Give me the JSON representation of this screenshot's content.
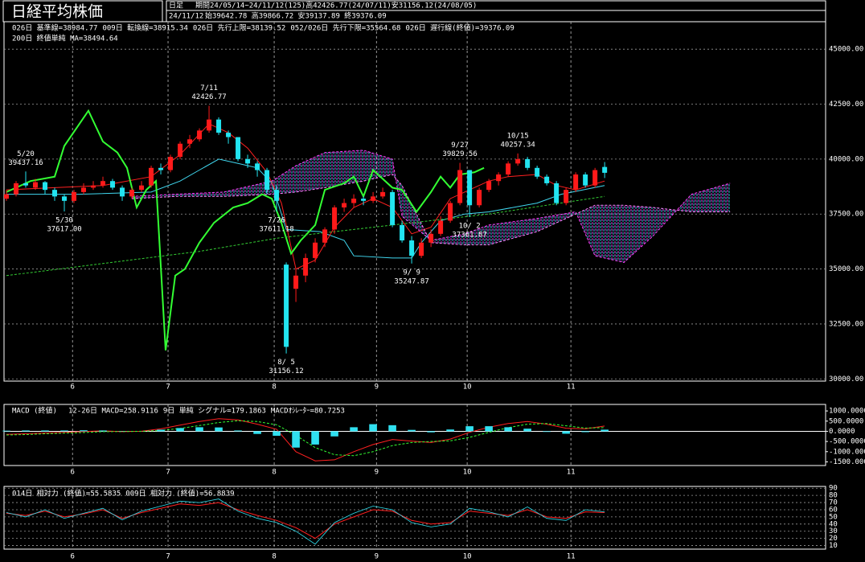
{
  "header": {
    "title": "日経平均株価",
    "interval": "日足",
    "period": "期間24/05/14~24/11/12(125)高42426.77(24/07/11)安31156.12(24/08/05)",
    "date": "24/11/12",
    "ohlc": "始39642.78 高39866.72 安39137.89 終39376.09"
  },
  "chart_data": [
    {
      "type": "candlestick",
      "x": [
        0,
        2,
        4,
        6,
        8,
        10,
        12,
        14,
        16,
        18,
        20,
        22,
        24,
        26,
        28,
        30,
        32,
        34,
        36,
        38,
        40,
        42,
        44,
        46,
        48,
        50,
        52,
        54,
        56,
        58,
        60,
        62,
        64,
        66,
        68,
        70,
        72,
        74,
        76,
        78,
        80,
        82,
        84,
        86,
        88,
        90,
        92,
        94,
        96,
        98,
        100,
        102,
        104,
        106,
        108,
        110,
        112,
        114,
        116,
        118,
        120,
        122,
        124
      ],
      "open": [
        38200,
        38400,
        38900,
        38700,
        38950,
        38600,
        38300,
        38100,
        38500,
        38700,
        38800,
        39000,
        38700,
        38300,
        38600,
        38800,
        39600,
        39500,
        40100,
        40700,
        40900,
        41300,
        41800,
        41200,
        41000,
        40000,
        39800,
        39500,
        38600,
        35200,
        34100,
        34700,
        35500,
        36200,
        36800,
        37800,
        38000,
        38200,
        38100,
        38300,
        38500,
        37000,
        36300,
        35600,
        36200,
        36600,
        37200,
        38000,
        39500,
        37900,
        38600,
        39000,
        39300,
        39800,
        40000,
        39600,
        39200,
        38900,
        38000,
        38600,
        39300,
        38800,
        39642.78
      ],
      "high": [
        38600,
        39000,
        39437.16,
        39100,
        39000,
        38700,
        38400,
        38600,
        38900,
        39000,
        39200,
        39100,
        38800,
        38700,
        39000,
        39700,
        39800,
        40200,
        40800,
        41100,
        41400,
        42426.77,
        41900,
        41300,
        41000,
        40200,
        39900,
        39600,
        38800,
        35300,
        35000,
        35700,
        36400,
        36900,
        37900,
        38200,
        38400,
        38300,
        38500,
        38700,
        38600,
        37200,
        36500,
        36400,
        36800,
        37400,
        38100,
        39829.56,
        39500,
        38700,
        39100,
        39400,
        39900,
        40257.34,
        40100,
        39700,
        39300,
        39000,
        38700,
        39400,
        39400,
        39600,
        39866.72
      ],
      "low": [
        38100,
        38300,
        38700,
        38600,
        38400,
        38100,
        37617,
        38000,
        38400,
        38600,
        38700,
        38600,
        38100,
        38200,
        38500,
        38700,
        39300,
        39400,
        40000,
        40500,
        40800,
        41200,
        41100,
        40700,
        39900,
        39600,
        39200,
        38400,
        37611.18,
        31156.12,
        33500,
        34400,
        35300,
        36000,
        36600,
        37600,
        37800,
        37900,
        38000,
        38200,
        36900,
        36200,
        35247.87,
        35500,
        36000,
        36500,
        37100,
        37900,
        37361.87,
        37800,
        38500,
        38800,
        39200,
        39700,
        39500,
        39100,
        38800,
        37900,
        37900,
        38500,
        38700,
        38700,
        39137.89
      ],
      "close": [
        38400,
        38900,
        38800,
        38950,
        38600,
        38300,
        38100,
        38500,
        38700,
        38800,
        39000,
        38700,
        38300,
        38600,
        38800,
        39600,
        39500,
        40100,
        40700,
        40900,
        41300,
        41800,
        41200,
        41000,
        40000,
        39800,
        39500,
        38600,
        38100,
        31458,
        34700,
        35500,
        36200,
        36800,
        37800,
        38000,
        38200,
        38100,
        38300,
        38500,
        37000,
        36300,
        35600,
        36200,
        36600,
        37200,
        38000,
        39500,
        37900,
        38600,
        39000,
        39300,
        39800,
        40000,
        39600,
        39200,
        38900,
        38000,
        38600,
        39300,
        38800,
        39500,
        39376.09
      ],
      "up_color": "#ff1a1a",
      "down_color": "#22e4f0",
      "annotations": [
        {
          "date": "5/20",
          "price": "39437.16"
        },
        {
          "date": "5/30",
          "price": "37617.00"
        },
        {
          "date": "7/11",
          "price": "42426.77"
        },
        {
          "date": "7/26",
          "price": "37611.18"
        },
        {
          "date": "8/ 5",
          "price": "31156.12"
        },
        {
          "date": "9/ 9",
          "price": "35247.87"
        },
        {
          "date": "9/27",
          "price": "39829.56"
        },
        {
          "date": "10/ 2",
          "price": "37361.87"
        },
        {
          "date": "10/15",
          "price": "40257.34"
        }
      ],
      "series": [
        {
          "name": "026日 基準線=38984.77",
          "color": "#40d8f0",
          "style": "line",
          "x": [
            0,
            15,
            30,
            36,
            40,
            44,
            48,
            52,
            55,
            58,
            65,
            70,
            72,
            80,
            84,
            86,
            90,
            95,
            100,
            110,
            115,
            124
          ],
          "values": [
            38400,
            38400,
            38500,
            39000,
            39500,
            40000,
            39800,
            39600,
            38900,
            36800,
            36700,
            36300,
            35600,
            35500,
            35500,
            36200,
            37200,
            37500,
            37600,
            38000,
            38400,
            38800
          ]
        },
        {
          "name": "009日 転換線=38915.34",
          "color": "#ff2020",
          "style": "line",
          "x": [
            0,
            10,
            20,
            30,
            36,
            42,
            46,
            50,
            54,
            57,
            60,
            64,
            68,
            72,
            76,
            80,
            84,
            88,
            92,
            96,
            100,
            104,
            110,
            114,
            118,
            124
          ],
          "values": [
            38600,
            38700,
            38800,
            39200,
            40200,
            41600,
            41200,
            40500,
            39400,
            38000,
            35000,
            35400,
            36900,
            37800,
            38200,
            37800,
            36600,
            36900,
            38200,
            38600,
            39000,
            39200,
            39300,
            38800,
            38600,
            39000
          ]
        },
        {
          "name": "026日 先行上限=38139.52",
          "color": "#ff40ff",
          "style": "dashed",
          "x": [
            26,
            35,
            45,
            55,
            60,
            66,
            74,
            80,
            82,
            88,
            95,
            100,
            110,
            118,
            122,
            128,
            134,
            142,
            150
          ],
          "values": [
            38300,
            38400,
            38500,
            39000,
            39700,
            40300,
            40400,
            40000,
            37400,
            36300,
            36600,
            37000,
            37300,
            37600,
            35600,
            35300,
            36500,
            38400,
            38900
          ]
        },
        {
          "name": "052/026日 先行下限=35564.68",
          "color": "#ff80ff",
          "style": "dashed",
          "x": [
            26,
            35,
            45,
            55,
            60,
            66,
            74,
            80,
            82,
            88,
            95,
            100,
            110,
            118,
            122,
            128,
            134,
            142,
            150
          ],
          "values": [
            38200,
            38300,
            38300,
            38400,
            38500,
            38700,
            39000,
            39300,
            38800,
            36200,
            36100,
            36100,
            36700,
            37500,
            37900,
            37900,
            37800,
            37600,
            37600
          ]
        },
        {
          "name": "026日 遅行線(終値)=39376.09",
          "color": "#33ff33",
          "style": "bold",
          "x": [
            0,
            5,
            10,
            12,
            17,
            20,
            23,
            25,
            27,
            29,
            31,
            33,
            35,
            37,
            40,
            43,
            47,
            50,
            53,
            55,
            57,
            59,
            61,
            64,
            66,
            70,
            72,
            74,
            76,
            80,
            82,
            85,
            88,
            90,
            92,
            94,
            97,
            99
          ],
          "values": [
            38500,
            39000,
            39200,
            40600,
            42200,
            40800,
            40300,
            39600,
            37800,
            38600,
            39000,
            31300,
            34700,
            35000,
            36200,
            37100,
            37800,
            38000,
            38400,
            38200,
            37100,
            35700,
            36300,
            37000,
            38600,
            38900,
            39200,
            38300,
            39500,
            38700,
            38600,
            37600,
            38500,
            39200,
            38700,
            39300,
            39400,
            39600
          ]
        },
        {
          "name": "200日 終値単純 MA=38494.64",
          "color": "#33cc33",
          "style": "dashed",
          "x": [
            0,
            40,
            56,
            80,
            100,
            124
          ],
          "values": [
            34700,
            35800,
            36400,
            37000,
            37500,
            38300
          ]
        }
      ],
      "cloud_fill": true,
      "xlim": [
        -0.5,
        169.8
      ],
      "xticks": [
        {
          "value": 13.7,
          "label": "6"
        },
        {
          "value": 33.5,
          "label": "7"
        },
        {
          "value": 55.5,
          "label": "8"
        },
        {
          "value": 76.7,
          "label": "9"
        },
        {
          "value": 95.5,
          "label": "10"
        },
        {
          "value": 117,
          "label": "11"
        }
      ],
      "ylim": [
        29900,
        46250
      ],
      "yticks": [
        {
          "value": 30000,
          "label": "30000.00"
        },
        {
          "value": 32500,
          "label": "32500.00"
        },
        {
          "value": 35000,
          "label": "35000.00"
        },
        {
          "value": 37500,
          "label": "37500.00"
        },
        {
          "value": 40000,
          "label": "40000.00"
        },
        {
          "value": 42500,
          "label": "42500.00"
        },
        {
          "value": 45000,
          "label": "45000.00"
        }
      ],
      "grid": true
    },
    {
      "type": "macd",
      "title": "MACD (終値)",
      "x": [
        0,
        4,
        8,
        12,
        16,
        20,
        24,
        28,
        32,
        36,
        40,
        44,
        48,
        52,
        56,
        60,
        64,
        68,
        72,
        76,
        80,
        84,
        88,
        92,
        96,
        100,
        104,
        108,
        112,
        116,
        120,
        124
      ],
      "series": [
        {
          "name": "12-26日 MACD=258.9116",
          "color": "#ff2020",
          "style": "line",
          "values": [
            -150,
            -120,
            -80,
            -50,
            -10,
            20,
            -20,
            0,
            120,
            300,
            480,
            620,
            560,
            350,
            100,
            -1000,
            -1450,
            -1400,
            -1000,
            -650,
            -400,
            -480,
            -550,
            -380,
            -50,
            200,
            380,
            480,
            350,
            150,
            120,
            259
          ]
        },
        {
          "name": "9日 単純 シグナル=179.1863",
          "color": "#33ff33",
          "style": "dashed",
          "values": [
            -180,
            -160,
            -120,
            -90,
            -60,
            -20,
            -10,
            0,
            40,
            140,
            280,
            430,
            520,
            480,
            320,
            -200,
            -800,
            -1150,
            -1200,
            -1000,
            -700,
            -550,
            -500,
            -470,
            -300,
            -50,
            180,
            350,
            380,
            270,
            160,
            179
          ]
        },
        {
          "name": "MACDｵｼﾚｰﾀｰ=80.7253",
          "color": "#30e0f0",
          "style": "bar",
          "values": [
            30,
            40,
            40,
            40,
            50,
            40,
            -10,
            0,
            80,
            160,
            200,
            190,
            40,
            -130,
            -220,
            -800,
            -650,
            -250,
            200,
            350,
            300,
            70,
            -50,
            90,
            250,
            250,
            200,
            130,
            -30,
            -120,
            -40,
            81
          ]
        }
      ],
      "xlim": [
        -0.5,
        169.8
      ],
      "xticks": [
        {
          "value": 13.7,
          "label": "6"
        },
        {
          "value": 33.5,
          "label": "7"
        },
        {
          "value": 55.5,
          "label": "8"
        },
        {
          "value": 76.7,
          "label": "9"
        },
        {
          "value": 95.5,
          "label": "10"
        },
        {
          "value": 117,
          "label": "11"
        }
      ],
      "ylim": [
        -1680,
        1320
      ],
      "yticks": [
        {
          "value": -1500,
          "label": "-1500.0000"
        },
        {
          "value": -1000,
          "label": "-1000.0000"
        },
        {
          "value": -500,
          "label": "-500.0000"
        },
        {
          "value": 0,
          "label": "0.0000"
        },
        {
          "value": 500,
          "label": "500.0000"
        },
        {
          "value": 1000,
          "label": "1000.0000"
        }
      ],
      "zero_line": true,
      "grid": false
    },
    {
      "type": "line",
      "x": [
        0,
        4,
        8,
        12,
        16,
        20,
        24,
        28,
        32,
        36,
        40,
        44,
        48,
        52,
        56,
        60,
        64,
        68,
        72,
        76,
        80,
        84,
        88,
        92,
        96,
        100,
        104,
        108,
        112,
        116,
        120,
        124
      ],
      "series": [
        {
          "name": "014日 相対力 (終値)=55.5835",
          "color": "#ff2020",
          "style": "line",
          "values": [
            55,
            52,
            58,
            50,
            54,
            60,
            48,
            56,
            62,
            68,
            66,
            70,
            60,
            52,
            45,
            35,
            20,
            40,
            50,
            60,
            58,
            45,
            40,
            42,
            58,
            55,
            52,
            60,
            50,
            48,
            57,
            56
          ]
        },
        {
          "name": "009日 相対力 (終値)=56.8839",
          "color": "#30e0f0",
          "style": "thin",
          "values": [
            56,
            50,
            60,
            48,
            55,
            62,
            46,
            58,
            65,
            72,
            70,
            75,
            58,
            48,
            42,
            30,
            12,
            42,
            55,
            65,
            60,
            42,
            36,
            40,
            62,
            57,
            50,
            64,
            48,
            45,
            60,
            57
          ]
        }
      ],
      "xlim": [
        -0.5,
        169.8
      ],
      "xticks": [
        {
          "value": 13.7,
          "label": "6"
        },
        {
          "value": 33.5,
          "label": "7"
        },
        {
          "value": 55.5,
          "label": "8"
        },
        {
          "value": 76.7,
          "label": "9"
        },
        {
          "value": 95.5,
          "label": "10"
        },
        {
          "value": 117,
          "label": "11"
        }
      ],
      "ylim": [
        5,
        92.5
      ],
      "yticks": [
        10,
        20,
        30,
        40,
        50,
        60,
        70,
        80,
        90
      ],
      "grid": true
    }
  ]
}
